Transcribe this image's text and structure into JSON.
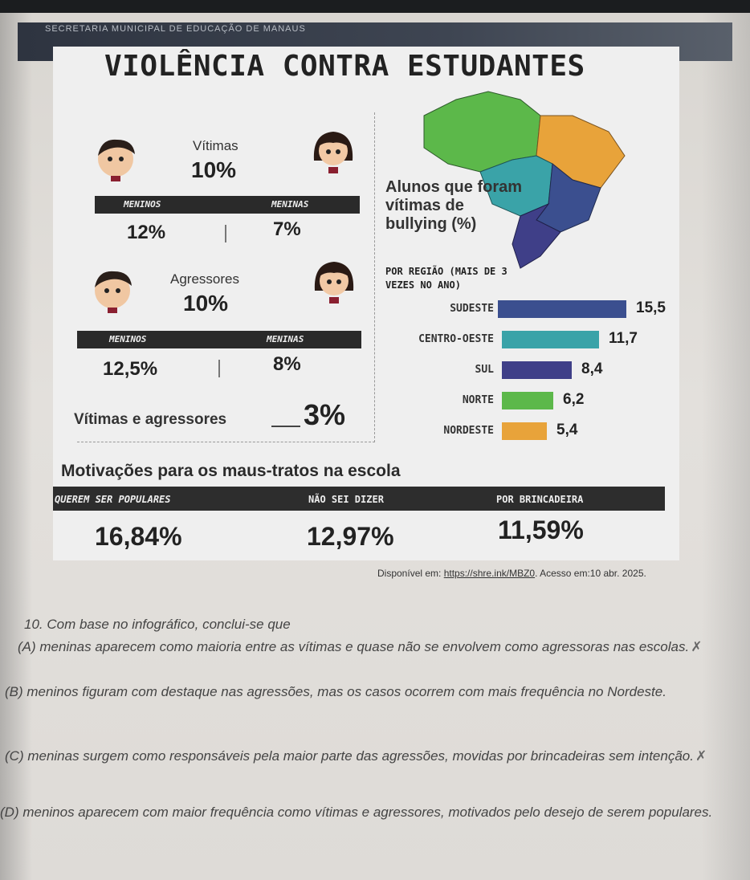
{
  "header": {
    "org": "SECRETARIA MUNICIPAL DE EDUCAÇÃO DE MANAUS"
  },
  "title": "VIOLÊNCIA CONTRA ESTUDANTES",
  "victims": {
    "label": "Vítimas",
    "total": "10%",
    "boys_label": "MENINOS",
    "girls_label": "MENINAS",
    "boys": "12%",
    "girls": "7%"
  },
  "aggressors": {
    "label": "Agressores",
    "total": "10%",
    "boys_label": "MENINOS",
    "girls_label": "MENINAS",
    "boys": "12,5%",
    "girls": "8%"
  },
  "both": {
    "label": "Vítimas e agressores",
    "value": "3%"
  },
  "regions": {
    "title": "Alunos que foram vítimas de bullying (%)",
    "subtitle": "POR REGIÃO (MAIS DE 3 VEZES NO ANO)"
  },
  "chart_data": {
    "type": "bar",
    "title": "Alunos que foram vítimas de bullying (%)",
    "subtitle": "POR REGIÃO (MAIS DE 3 VEZES NO ANO)",
    "categories": [
      "SUDESTE",
      "CENTRO-OESTE",
      "SUL",
      "NORTE",
      "NORDESTE"
    ],
    "values": [
      15.5,
      11.7,
      8.4,
      6.2,
      5.4
    ],
    "value_labels": [
      "15,5",
      "11,7",
      "8,4",
      "6,2",
      "5,4"
    ],
    "colors": [
      "#3b4f8f",
      "#3aa3a8",
      "#3f3f88",
      "#5cb84a",
      "#e8a33a"
    ],
    "orientation": "horizontal",
    "xlim": [
      0,
      15.5
    ]
  },
  "motivations": {
    "title": "Motivações para os maus-tratos na escola",
    "items": [
      {
        "label": "QUEREM SER POPULARES",
        "value": "16,84%"
      },
      {
        "label": "NÃO SEI DIZER",
        "value": "12,97%"
      },
      {
        "label": "POR BRINCADEIRA",
        "value": "11,59%"
      }
    ]
  },
  "source": {
    "prefix": "Disponível em: ",
    "link": "https://shre.ink/MBZ0",
    "suffix": ". Acesso em:10 abr. 2025."
  },
  "question": {
    "stem": "10. Com base no infográfico, conclui-se que",
    "options": [
      "(A) meninas aparecem como maioria entre as vítimas e quase não se envolvem como agressoras nas escolas.",
      "(B) meninos figuram com destaque nas agressões, mas os casos ocorrem com mais frequência no Nordeste.",
      "(C) meninas surgem como responsáveis pela maior parte das agressões, movidas por brincadeiras sem intenção.",
      "(D) meninos aparecem com maior frequência como vítimas e agressores, motivados pelo desejo de serem populares."
    ]
  },
  "colors": {
    "north": "#5cb84a",
    "northeast": "#e8a33a",
    "central_west": "#3aa3a8",
    "southeast": "#3b4f8f",
    "south": "#3f3f88"
  }
}
